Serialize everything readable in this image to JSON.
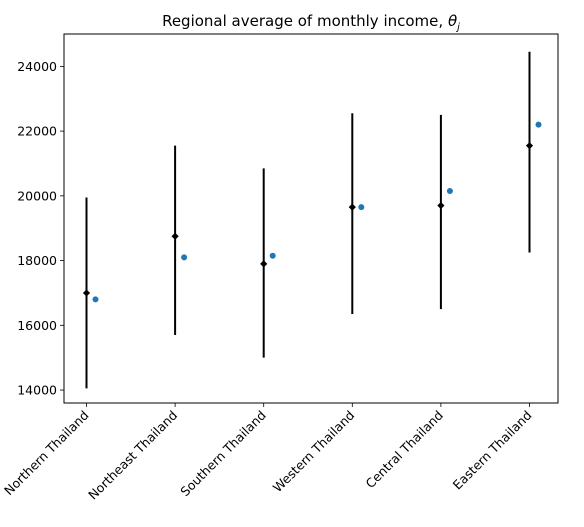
{
  "chart_data": {
    "type": "scatter",
    "title": "Regional average of monthly income, ",
    "title_symbol": "θ",
    "title_subscript": "j",
    "xlabel": "",
    "ylabel": "",
    "categories": [
      "Northern Thailand",
      "Northeast Thailand",
      "Southern Thailand",
      "Western Thailand",
      "Central Thailand",
      "Eastern Thailand"
    ],
    "ylim": [
      13600,
      25000
    ],
    "yticks": [
      14000,
      16000,
      18000,
      20000,
      22000,
      24000
    ],
    "grid": false,
    "series": [
      {
        "marker": "diamond",
        "color": "#000000",
        "values": [
          17000,
          18750,
          17900,
          19650,
          19700,
          21550
        ],
        "interval_low": [
          14050,
          15700,
          15000,
          16350,
          16500,
          18250
        ],
        "interval_high": [
          19950,
          21550,
          20850,
          22550,
          22500,
          24450
        ]
      },
      {
        "marker": "circle",
        "color": "#1f77b4",
        "values": [
          16800,
          18100,
          18150,
          19650,
          20150,
          22200
        ]
      }
    ]
  }
}
